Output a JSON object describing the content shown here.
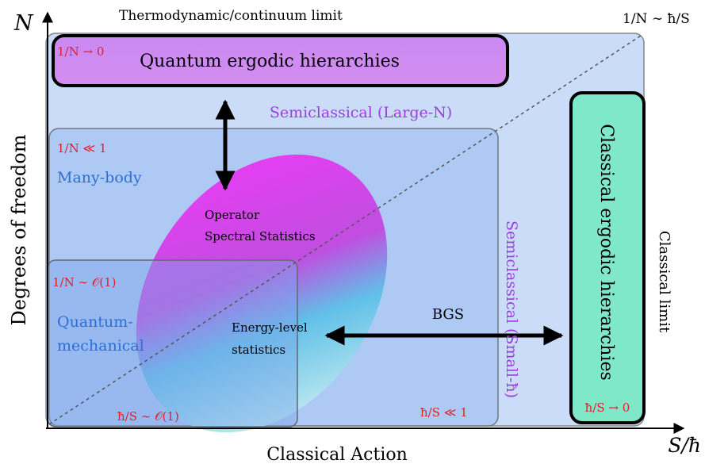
{
  "axes": {
    "y_symbol": "N",
    "x_symbol": "S/ħ",
    "x_label": "Classical Action",
    "y_label": "Degrees of freedom"
  },
  "limits": {
    "top": "Thermodynamic/continuum limit",
    "diagonal": "1/N ∼ ħ/S",
    "right": "Classical limit"
  },
  "quantum_ergodic": {
    "condition": "1/N → 0",
    "title": "Quantum ergodic hierarchies"
  },
  "semiclassical_large_n": "Semiclassical (Large-N)",
  "many_body": {
    "condition": "1/N ≪ 1",
    "title": "Many-body"
  },
  "operator_stats": [
    "Operator",
    "Spectral Statistics"
  ],
  "quantum_mechanical": {
    "condition": "1/N ∼ 𝒪(1)",
    "title": [
      "Quantum-",
      "mechanical"
    ],
    "bottom_condition": "ħ/S ∼ 𝒪(1)"
  },
  "energy_level": [
    "Energy-level",
    "statistics"
  ],
  "bgs": "BGS",
  "semiclassical_small_h": {
    "title": "Semiclassical (Small-ħ)",
    "condition": "ħ/S ≪ 1"
  },
  "classical_ergodic": {
    "title": "Classical ergodic hierarchies",
    "condition": "ħ/S → 0"
  }
}
